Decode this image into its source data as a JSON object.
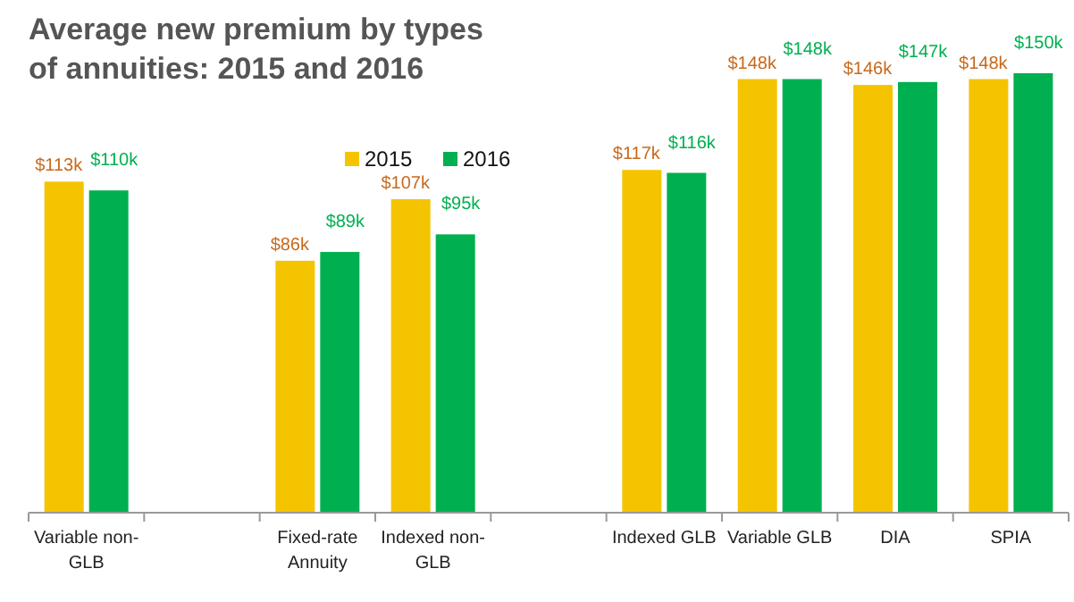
{
  "chart_data": {
    "type": "bar",
    "title": "Average new premium by types of annuities: 2015 and 2016",
    "categories": [
      "Variable non-GLB",
      null,
      "Fixed-rate Annuity",
      "Indexed non-GLB",
      null,
      "Indexed GLB",
      "Variable GLB",
      "DIA",
      "SPIA"
    ],
    "series": [
      {
        "name": "2015",
        "color": "#f5c400",
        "values": [
          113,
          null,
          86,
          107,
          null,
          117,
          148,
          146,
          148
        ],
        "value_labels": [
          "$113k",
          null,
          "$86k",
          "$107k",
          null,
          "$117k",
          "$148k",
          "$146k",
          "$148k"
        ]
      },
      {
        "name": "2016",
        "color": "#00b050",
        "values": [
          110,
          null,
          89,
          95,
          null,
          116,
          148,
          147,
          150
        ],
        "value_labels": [
          "$110k",
          null,
          "$89k",
          "$95k",
          null,
          "$116k",
          "$148k",
          "$147k",
          "$150k"
        ]
      }
    ],
    "legend": "top",
    "tick_labels": "x"
  }
}
